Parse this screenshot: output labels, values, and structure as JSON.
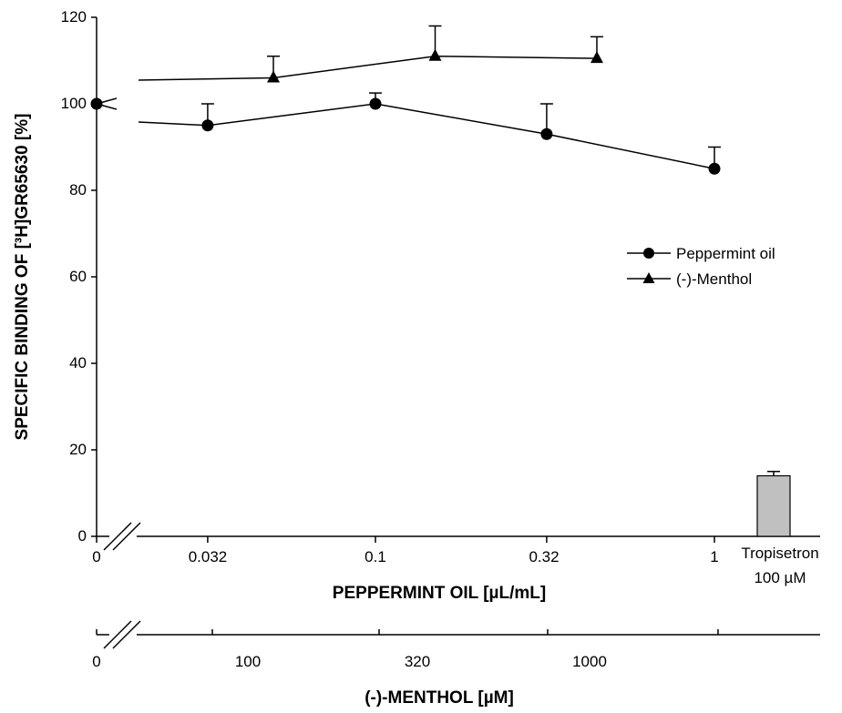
{
  "chart_data": {
    "type": "line",
    "ylabel": "SPECIFIC BINDING OF [³H]GR65630 [%]",
    "xlabel": "PEPPERMINT OIL [µL/mL]",
    "x2label": "(-)-MENTHOL [µM]",
    "ylim": [
      0,
      120
    ],
    "yticks": [
      "0",
      "20",
      "40",
      "60",
      "80",
      "100",
      "120"
    ],
    "x_ticks": [
      "0",
      "0.032",
      "0.1",
      "0.32",
      "1"
    ],
    "x2_ticks": [
      "0",
      "100",
      "320",
      "1000"
    ],
    "grid": false,
    "legend_position": "right",
    "series": [
      {
        "name": "Peppermint oil",
        "marker": "circle",
        "points": [
          {
            "x": 0,
            "y": 100,
            "err": 0
          },
          {
            "x": 0.032,
            "y": 95,
            "err": 5
          },
          {
            "x": 0.1,
            "y": 100,
            "err": 2.5
          },
          {
            "x": 0.32,
            "y": 93,
            "err": 7
          },
          {
            "x": 1,
            "y": 85,
            "err": 5
          }
        ]
      },
      {
        "name": "(-)-Menthol",
        "marker": "triangle",
        "points": [
          {
            "x": 0,
            "y": 100,
            "err": 0
          },
          {
            "x": 0.05,
            "y": 106,
            "err": 5
          },
          {
            "x": 0.15,
            "y": 111,
            "err": 7
          },
          {
            "x": 0.45,
            "y": 110.5,
            "err": 5
          }
        ]
      }
    ],
    "bar": {
      "label_line1": "Tropisetron",
      "label_line2": "100 µM",
      "value": 14,
      "err": 1,
      "color": "#c0c0c0"
    }
  }
}
